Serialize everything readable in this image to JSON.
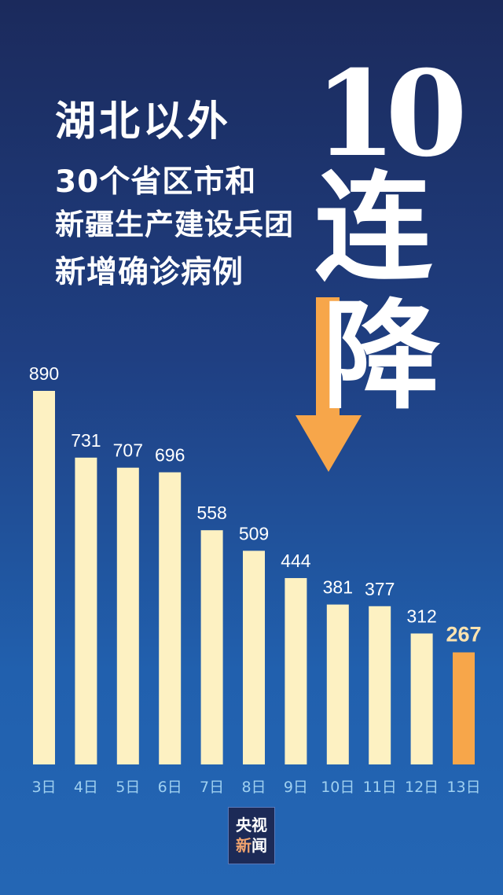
{
  "headline": {
    "line1": "湖北以外",
    "line2": "30个省区市和",
    "line3": "新疆生产建设兵团",
    "line4": "新增确诊病例"
  },
  "big_title": {
    "number": "10",
    "char1": "连",
    "char2": "降"
  },
  "logo": {
    "line1": "央视",
    "line2_part1": "新",
    "line2_part2": "闻"
  },
  "colors": {
    "bar": "#fdf1c2",
    "highlight": "#f7a64a",
    "label": "#ffffff",
    "highlight_label": "#fbe3b0",
    "axis_label": "#9fd0f0",
    "arrow": "#f7a64a"
  },
  "chart_data": {
    "type": "bar",
    "title": "",
    "xlabel": "",
    "ylabel": "",
    "ylim": [
      0,
      890
    ],
    "grid": false,
    "categories": [
      "3日",
      "4日",
      "5日",
      "6日",
      "7日",
      "8日",
      "9日",
      "10日",
      "11日",
      "12日",
      "13日"
    ],
    "values": [
      890,
      731,
      707,
      696,
      558,
      509,
      444,
      381,
      377,
      312,
      267
    ],
    "highlight_index": 10
  }
}
